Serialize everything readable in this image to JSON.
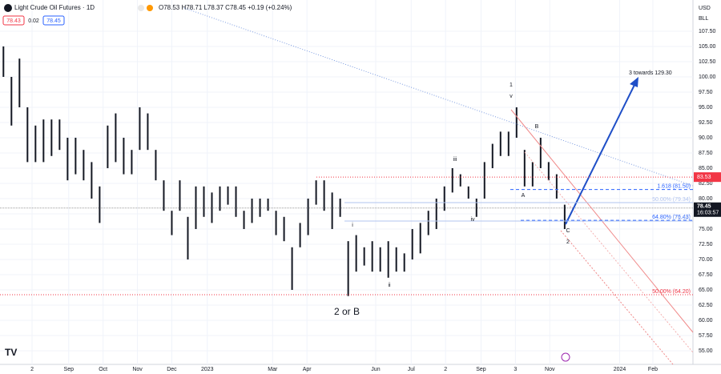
{
  "chart_data": {
    "type": "range-bar",
    "title": "Light Crude Oil Futures · 1D",
    "ohlc": "O78.53 H78.71 L78.37 C78.45 +0.19 (+0.24%)",
    "bid": "78.43",
    "spread": "0.02",
    "ask": "78.45",
    "currency": "USD",
    "unit": "BLL",
    "color": "#131722",
    "xlim": [
      0,
      605
    ],
    "ylim": [
      52.76,
      112.63
    ],
    "xticks": [
      {
        "value": 28,
        "label": "2"
      },
      {
        "value": 60,
        "label": "Sep"
      },
      {
        "value": 90,
        "label": "Oct"
      },
      {
        "value": 120,
        "label": "Nov"
      },
      {
        "value": 150,
        "label": "Dec"
      },
      {
        "value": 181,
        "label": "2023"
      },
      {
        "value": 238,
        "label": "Mar"
      },
      {
        "value": 268,
        "label": "Apr"
      },
      {
        "value": 328,
        "label": "Jun"
      },
      {
        "value": 359,
        "label": "Jul"
      },
      {
        "value": 389,
        "label": "2"
      },
      {
        "value": 420,
        "label": "Sep"
      },
      {
        "value": 450,
        "label": "3"
      },
      {
        "value": 480,
        "label": "Nov"
      },
      {
        "value": 541,
        "label": "2024"
      },
      {
        "value": 570,
        "label": "Feb"
      }
    ],
    "yticks": [
      {
        "value": 55,
        "label": "55.00"
      },
      {
        "value": 57.5,
        "label": "57.50"
      },
      {
        "value": 60,
        "label": "60.00"
      },
      {
        "value": 62.5,
        "label": "62.50"
      },
      {
        "value": 65,
        "label": "65.00"
      },
      {
        "value": 67.5,
        "label": "67.50"
      },
      {
        "value": 70,
        "label": "70.00"
      },
      {
        "value": 72.5,
        "label": "72.50"
      },
      {
        "value": 75,
        "label": "75.00"
      },
      {
        "value": 77.5,
        "label": "77.50"
      },
      {
        "value": 80,
        "label": "80.00"
      },
      {
        "value": 82.5,
        "label": "82.50"
      },
      {
        "value": 85,
        "label": "85.00"
      },
      {
        "value": 87.5,
        "label": "87.50"
      },
      {
        "value": 90,
        "label": "90.00"
      },
      {
        "value": 92.5,
        "label": "92.50"
      },
      {
        "value": 95,
        "label": "95.00"
      },
      {
        "value": 97.5,
        "label": "97.50"
      },
      {
        "value": 100,
        "label": "100.00"
      },
      {
        "value": 102.5,
        "label": "102.50"
      },
      {
        "value": 105,
        "label": "105.00"
      },
      {
        "value": 107.5,
        "label": "107.50"
      }
    ],
    "x": [
      3,
      10,
      17,
      24,
      31,
      38,
      45,
      52,
      59,
      66,
      73,
      80,
      87,
      94,
      101,
      108,
      115,
      122,
      129,
      136,
      143,
      150,
      157,
      164,
      171,
      178,
      185,
      192,
      199,
      206,
      213,
      220,
      227,
      234,
      241,
      248,
      255,
      262,
      269,
      276,
      283,
      290,
      297,
      304,
      311,
      318,
      325,
      332,
      339,
      346,
      353,
      360,
      367,
      374,
      381,
      388,
      395,
      402,
      409,
      416,
      423,
      430,
      437,
      444,
      451,
      458,
      465,
      472,
      479,
      486,
      493
    ],
    "high": [
      105,
      100,
      103,
      95,
      92,
      93,
      93,
      93,
      90,
      90,
      88,
      86,
      82,
      92,
      94,
      90,
      88,
      95,
      94,
      88,
      83,
      78,
      83,
      77,
      82,
      82,
      81,
      82,
      82,
      82,
      78,
      80,
      80,
      80,
      78,
      77,
      72,
      76,
      80,
      83,
      83,
      81,
      80,
      73,
      74,
      72,
      73,
      72,
      73,
      72,
      71,
      75,
      76,
      78,
      80,
      82,
      85,
      84,
      82,
      80,
      86,
      89,
      91,
      91,
      95,
      88,
      86,
      90,
      86,
      84,
      79
    ],
    "low": [
      100,
      92,
      95,
      86,
      86,
      86,
      87,
      88,
      83,
      84,
      83,
      80,
      76,
      85,
      86,
      84,
      84,
      88,
      88,
      83,
      78,
      74,
      78,
      70,
      75,
      77,
      76,
      78,
      79,
      77,
      75,
      76,
      77,
      78,
      74,
      73,
      65,
      72,
      74,
      79,
      78,
      75,
      77,
      64,
      68,
      69,
      68,
      68,
      67,
      68,
      68,
      70,
      71,
      74,
      75,
      78,
      81,
      82,
      80,
      77,
      80,
      85,
      87,
      87,
      90,
      82,
      82,
      85,
      83,
      80,
      75
    ],
    "levels": [
      {
        "value": 83.53,
        "label": "83.53"
      },
      {
        "value": 81.5,
        "label": "1.618 (81.50)"
      },
      {
        "value": 79.34,
        "label": "50.00% (79.34)"
      },
      {
        "value": 76.43,
        "label": "64.80% (76.43)"
      },
      {
        "value": 76.32,
        "label": "1 (76.32)"
      },
      {
        "value": 64.2,
        "label": "50.00% (64.20)"
      }
    ],
    "last_price": {
      "value": 78.45,
      "label": "78.45",
      "countdown": "16:03:57"
    },
    "annotations": [
      "1",
      "v",
      "iii",
      "iv",
      "i",
      "ii",
      "2 or B",
      "B",
      "A",
      "C",
      "2",
      "3 towards 129.30"
    ]
  }
}
